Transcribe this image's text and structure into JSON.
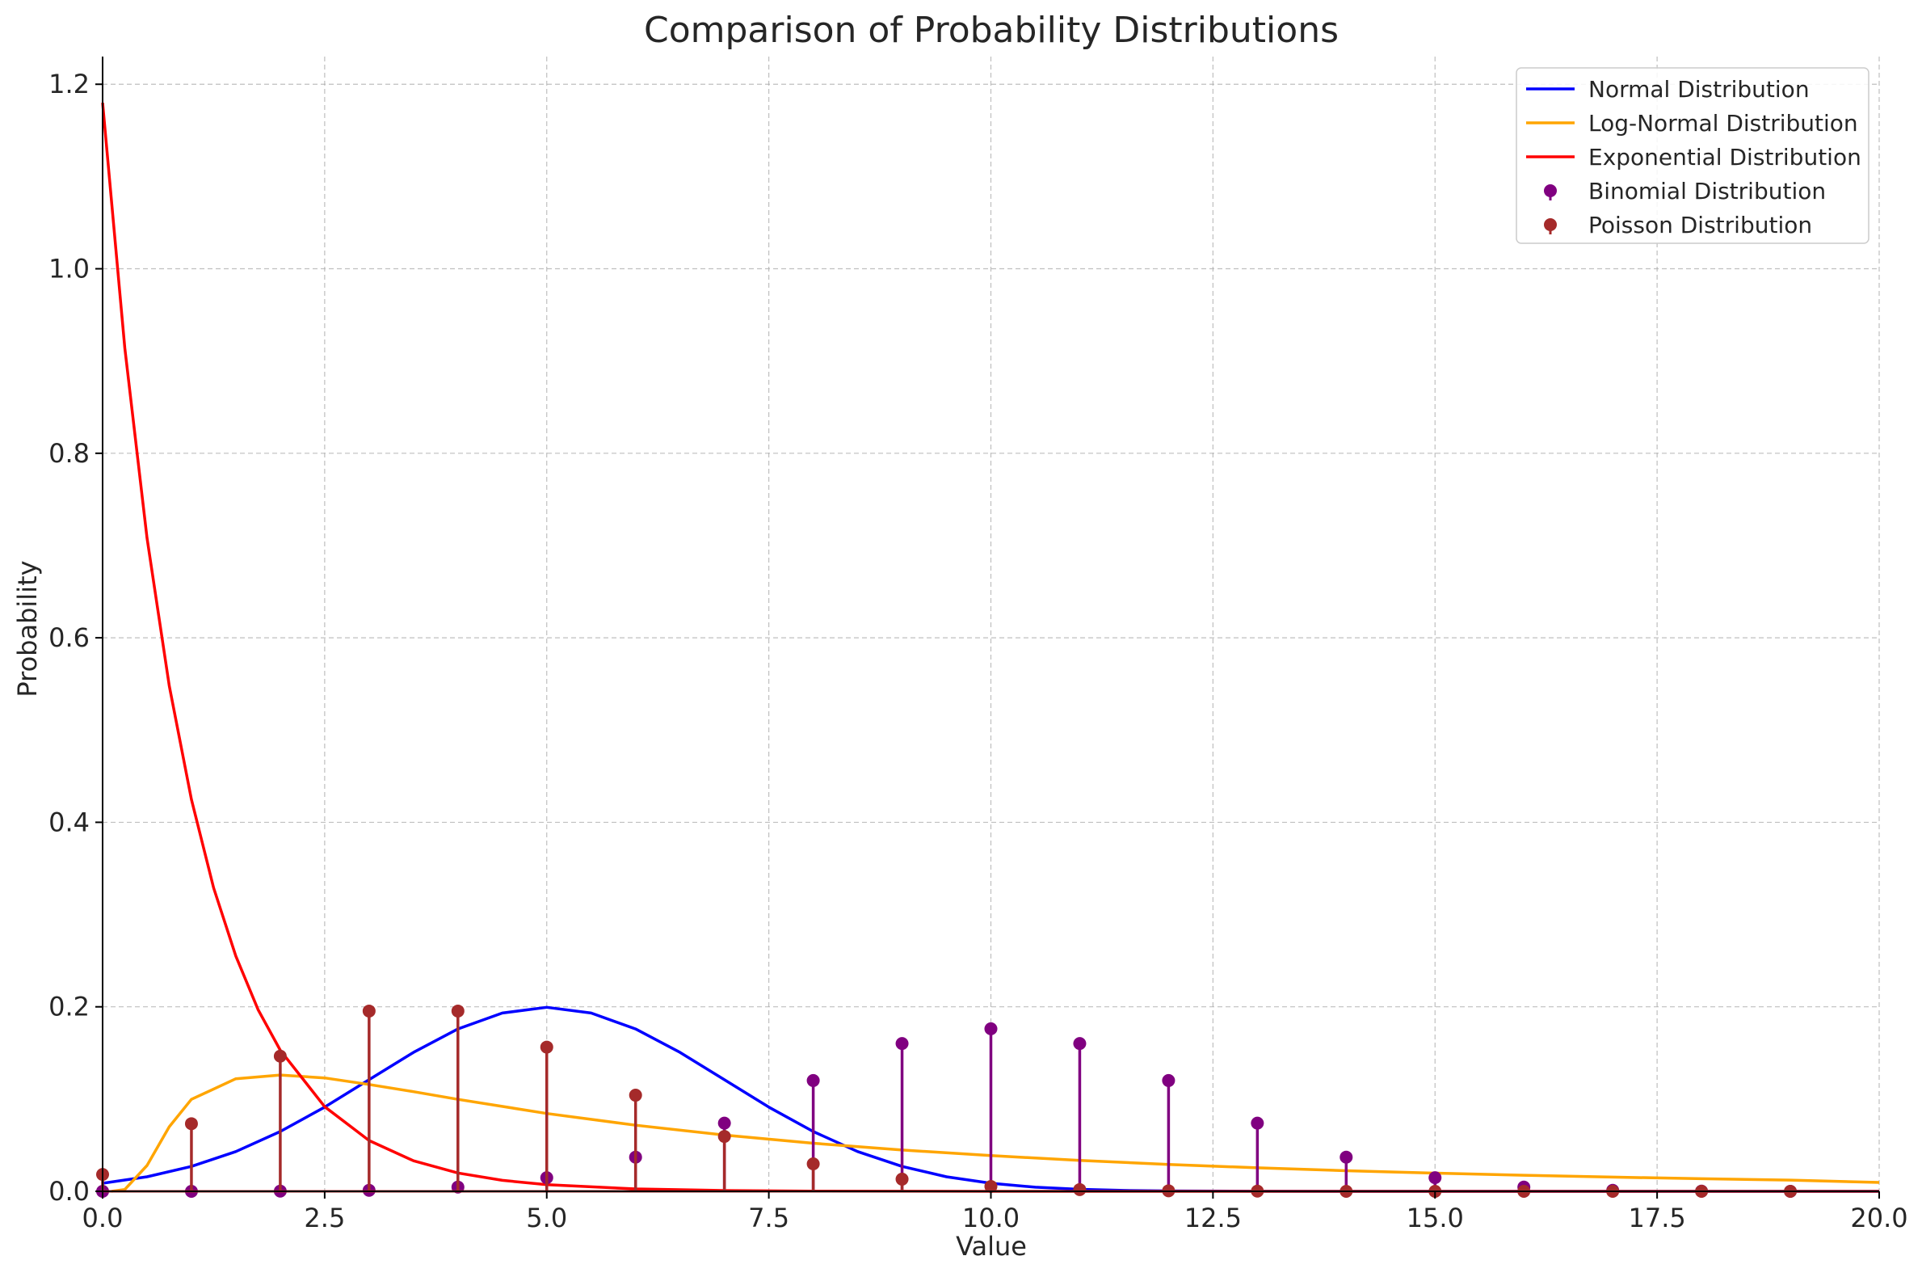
{
  "chart_data": {
    "type": "line",
    "title": "Comparison of Probability Distributions",
    "xlabel": "Value",
    "ylabel": "Probability",
    "xlim": [
      0,
      20
    ],
    "ylim": [
      0,
      1.23
    ],
    "xticks": [
      "0.0",
      "2.5",
      "5.0",
      "7.5",
      "10.0",
      "12.5",
      "15.0",
      "17.5",
      "20.0"
    ],
    "yticks": [
      "0.0",
      "0.2",
      "0.4",
      "0.6",
      "0.8",
      "1.0",
      "1.2"
    ],
    "grid": true,
    "legend_position": "top-right",
    "series": [
      {
        "name": "Normal Distribution",
        "kind": "line",
        "color": "#0000ff",
        "points": [
          [
            0,
            0.0088
          ],
          [
            0.5,
            0.0158
          ],
          [
            1,
            0.027
          ],
          [
            1.5,
            0.0431
          ],
          [
            2,
            0.0648
          ],
          [
            2.5,
            0.0913
          ],
          [
            3,
            0.121
          ],
          [
            3.5,
            0.1506
          ],
          [
            4,
            0.176
          ],
          [
            4.5,
            0.1933
          ],
          [
            5,
            0.1995
          ],
          [
            5.5,
            0.1933
          ],
          [
            6,
            0.176
          ],
          [
            6.5,
            0.1506
          ],
          [
            7,
            0.121
          ],
          [
            7.5,
            0.0913
          ],
          [
            8,
            0.0648
          ],
          [
            8.5,
            0.0431
          ],
          [
            9,
            0.027
          ],
          [
            9.5,
            0.0158
          ],
          [
            10,
            0.0088
          ],
          [
            10.5,
            0.0045
          ],
          [
            11,
            0.0022
          ],
          [
            11.5,
            0.001
          ],
          [
            12,
            0.0004
          ],
          [
            13,
            0.0001
          ],
          [
            14,
            0
          ],
          [
            20,
            0
          ]
        ]
      },
      {
        "name": "Log-Normal Distribution",
        "kind": "line",
        "color": "#ffa500",
        "points": [
          [
            0.1,
            0
          ],
          [
            0.25,
            0.002
          ],
          [
            0.5,
            0.028
          ],
          [
            0.75,
            0.07
          ],
          [
            1,
            0.0997
          ],
          [
            1.5,
            0.122
          ],
          [
            2,
            0.1261
          ],
          [
            2.5,
            0.1229
          ],
          [
            3,
            0.1158
          ],
          [
            3.5,
            0.108
          ],
          [
            4,
            0.0997
          ],
          [
            5,
            0.0844
          ],
          [
            6,
            0.0717
          ],
          [
            7,
            0.061
          ],
          [
            8,
            0.0521
          ],
          [
            9,
            0.0448
          ],
          [
            10,
            0.0387
          ],
          [
            11,
            0.0335
          ],
          [
            12,
            0.0292
          ],
          [
            13,
            0.0255
          ],
          [
            14,
            0.0223
          ],
          [
            15,
            0.0197
          ],
          [
            16,
            0.0174
          ],
          [
            17,
            0.0154
          ],
          [
            18,
            0.0137
          ],
          [
            19,
            0.0122
          ],
          [
            20,
            0.0096
          ]
        ]
      },
      {
        "name": "Exponential Distribution",
        "kind": "line",
        "color": "#ff0000",
        "points": [
          [
            0,
            1.18
          ],
          [
            0.25,
            0.914
          ],
          [
            0.5,
            0.708
          ],
          [
            0.75,
            0.548
          ],
          [
            1,
            0.425
          ],
          [
            1.25,
            0.329
          ],
          [
            1.5,
            0.255
          ],
          [
            1.75,
            0.197
          ],
          [
            2,
            0.153
          ],
          [
            2.5,
            0.0917
          ],
          [
            3,
            0.0551
          ],
          [
            3.5,
            0.0331
          ],
          [
            4,
            0.0199
          ],
          [
            4.5,
            0.0119
          ],
          [
            5,
            0.0072
          ],
          [
            6,
            0.0026
          ],
          [
            7,
            0.0009
          ],
          [
            8,
            0.0003
          ],
          [
            10,
            0
          ],
          [
            20,
            0
          ]
        ]
      },
      {
        "name": "Binomial Distribution",
        "kind": "stem",
        "color": "#800080",
        "points": [
          [
            0,
            0
          ],
          [
            1,
            0
          ],
          [
            2,
            0.0002
          ],
          [
            3,
            0.0011
          ],
          [
            4,
            0.0046
          ],
          [
            5,
            0.0148
          ],
          [
            6,
            0.037
          ],
          [
            7,
            0.0739
          ],
          [
            8,
            0.1201
          ],
          [
            9,
            0.1602
          ],
          [
            10,
            0.1762
          ],
          [
            11,
            0.1602
          ],
          [
            12,
            0.1201
          ],
          [
            13,
            0.0739
          ],
          [
            14,
            0.037
          ],
          [
            15,
            0.0148
          ],
          [
            16,
            0.0046
          ],
          [
            17,
            0.0011
          ],
          [
            18,
            0.0002
          ],
          [
            19,
            0
          ]
        ]
      },
      {
        "name": "Poisson Distribution",
        "kind": "stem",
        "color": "#a52a2a",
        "points": [
          [
            0,
            0.0183
          ],
          [
            1,
            0.0733
          ],
          [
            2,
            0.1465
          ],
          [
            3,
            0.1954
          ],
          [
            4,
            0.1954
          ],
          [
            5,
            0.1563
          ],
          [
            6,
            0.1042
          ],
          [
            7,
            0.0595
          ],
          [
            8,
            0.0298
          ],
          [
            9,
            0.0132
          ],
          [
            10,
            0.0053
          ],
          [
            11,
            0.0019
          ],
          [
            12,
            0.0006
          ],
          [
            13,
            0.0002
          ],
          [
            14,
            0
          ],
          [
            15,
            0
          ],
          [
            16,
            0
          ],
          [
            17,
            0
          ],
          [
            18,
            0
          ],
          [
            19,
            0
          ]
        ]
      }
    ]
  }
}
